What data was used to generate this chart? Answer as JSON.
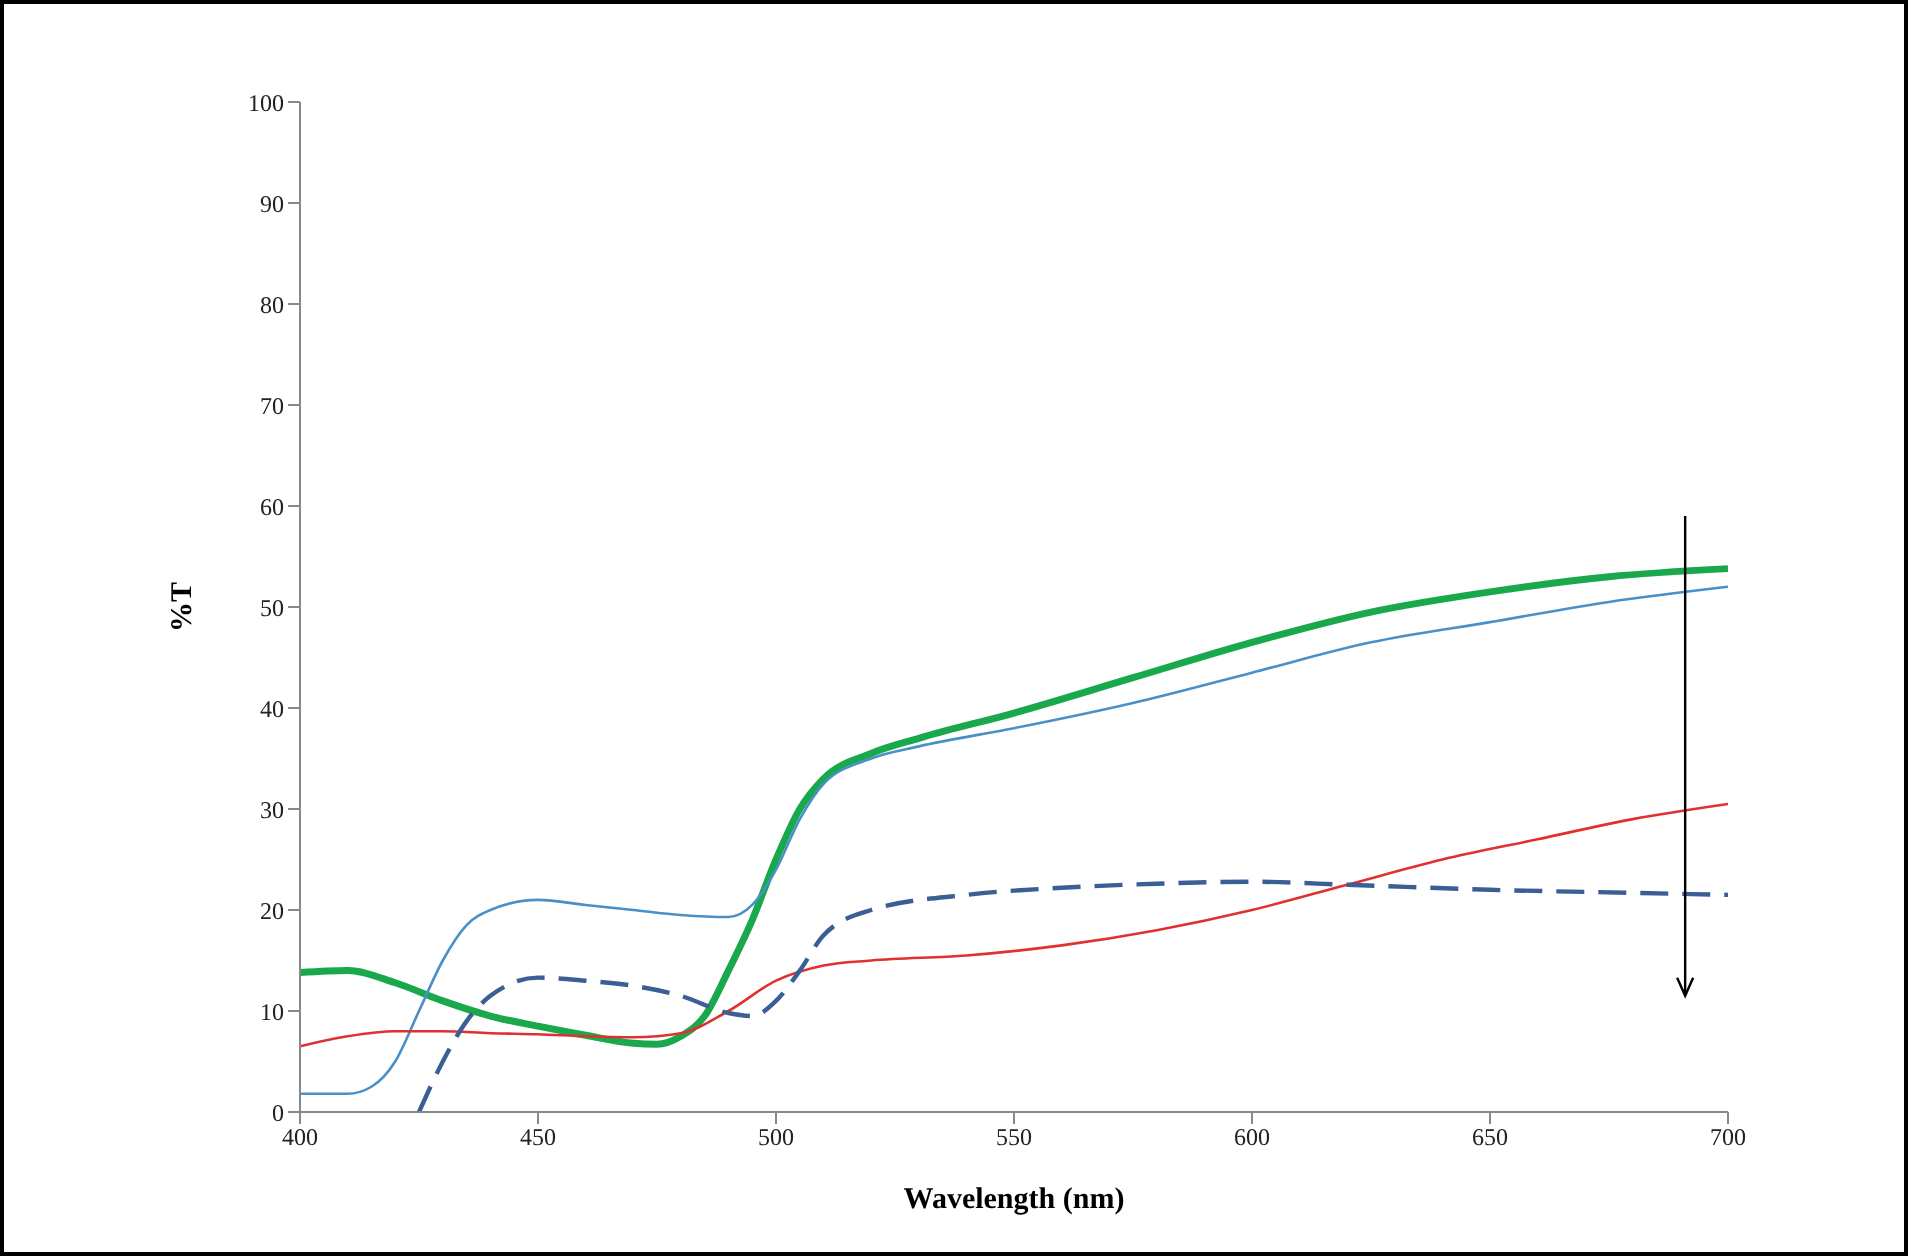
{
  "chart_data": {
    "type": "line",
    "xlabel": "Wavelength (nm)",
    "ylabel": "%T",
    "xlim": [
      400,
      700
    ],
    "xticks": [
      400,
      450,
      500,
      550,
      600,
      650,
      700
    ],
    "ylim": [
      0,
      100
    ],
    "yticks": [
      0,
      10,
      20,
      30,
      40,
      50,
      60,
      70,
      80,
      90,
      100
    ],
    "grid": false,
    "legend": false,
    "marker": "none",
    "series": [
      {
        "color": "#1aa84c",
        "line_style": "solid",
        "x": [
          400,
          410,
          420,
          430,
          440,
          450,
          460,
          470,
          475,
          480,
          485,
          490,
          495,
          500,
          505,
          510,
          520,
          530,
          550,
          575,
          600,
          625,
          650,
          675,
          700
        ],
        "values": [
          13.8,
          14.0,
          12.8,
          11,
          9.5,
          8.5,
          7.6,
          6.8,
          6.7,
          7.5,
          9.5,
          14,
          19,
          25,
          30,
          33,
          35.5,
          37,
          39.5,
          43,
          46.5,
          49.5,
          51.5,
          53,
          53.8
        ]
      },
      {
        "color": "#4a90c8",
        "line_style": "solid",
        "x": [
          400,
          410,
          415,
          420,
          425,
          430,
          435,
          440,
          450,
          460,
          470,
          480,
          490,
          495,
          500,
          505,
          510,
          520,
          530,
          550,
          575,
          600,
          625,
          650,
          675,
          700
        ],
        "values": [
          1.8,
          1.8,
          2.5,
          5,
          10,
          15,
          18.5,
          20,
          21,
          20.5,
          20,
          19.5,
          19.3,
          20.5,
          24,
          29,
          32.5,
          35,
          36.2,
          38,
          40.5,
          43.5,
          46.5,
          48.5,
          50.5,
          52
        ]
      },
      {
        "color": "#e03030",
        "line_style": "solid",
        "x": [
          400,
          410,
          420,
          430,
          440,
          450,
          460,
          470,
          480,
          490,
          500,
          510,
          520,
          540,
          560,
          580,
          600,
          620,
          640,
          660,
          680,
          700
        ],
        "values": [
          6.5,
          7.5,
          8,
          8,
          7.8,
          7.7,
          7.5,
          7.4,
          7.8,
          10,
          13,
          14.5,
          15,
          15.5,
          16.5,
          18,
          20,
          22.5,
          25,
          27,
          29,
          30.5
        ]
      },
      {
        "color": "#3a5f94",
        "line_style": "dashed",
        "x": [
          425,
          430,
          435,
          440,
          450,
          460,
          470,
          480,
          490,
          495,
          500,
          505,
          510,
          520,
          540,
          560,
          580,
          600,
          620,
          650,
          680,
          700
        ],
        "values": [
          0,
          5,
          9,
          11.5,
          13.3,
          13,
          12.5,
          11.5,
          9.8,
          9.5,
          11,
          14,
          17.5,
          20,
          21.5,
          22.2,
          22.6,
          22.8,
          22.5,
          22,
          21.7,
          21.5
        ]
      }
    ]
  }
}
